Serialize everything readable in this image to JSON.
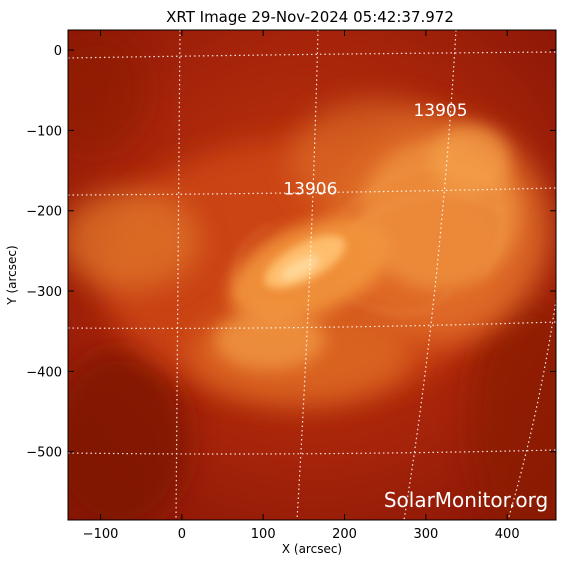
{
  "title": "XRT Image 29-Nov-2024 05:42:37.972",
  "x_axis": {
    "label": "X (arcsec)",
    "range": [
      -140,
      460
    ],
    "ticks": [
      -100,
      0,
      100,
      200,
      300,
      400
    ],
    "tick_labels": [
      "−100",
      "0",
      "100",
      "200",
      "300",
      "400"
    ]
  },
  "y_axis": {
    "label": "Y (arcsec)",
    "range": [
      -585,
      25
    ],
    "ticks": [
      0,
      -100,
      -200,
      -300,
      -400,
      -500
    ],
    "tick_labels": [
      "0",
      "−100",
      "−200",
      "−300",
      "−400",
      "−500"
    ]
  },
  "active_regions": [
    {
      "label": "13905",
      "x": 318,
      "y": -82
    },
    {
      "label": "13906",
      "x": 158,
      "y": -180
    }
  ],
  "watermark": "SolarMonitor.org",
  "colors": {
    "background": "#a02008",
    "corona_bright": "#ffb060",
    "grid": "#ffffff",
    "frame": "#000000"
  }
}
